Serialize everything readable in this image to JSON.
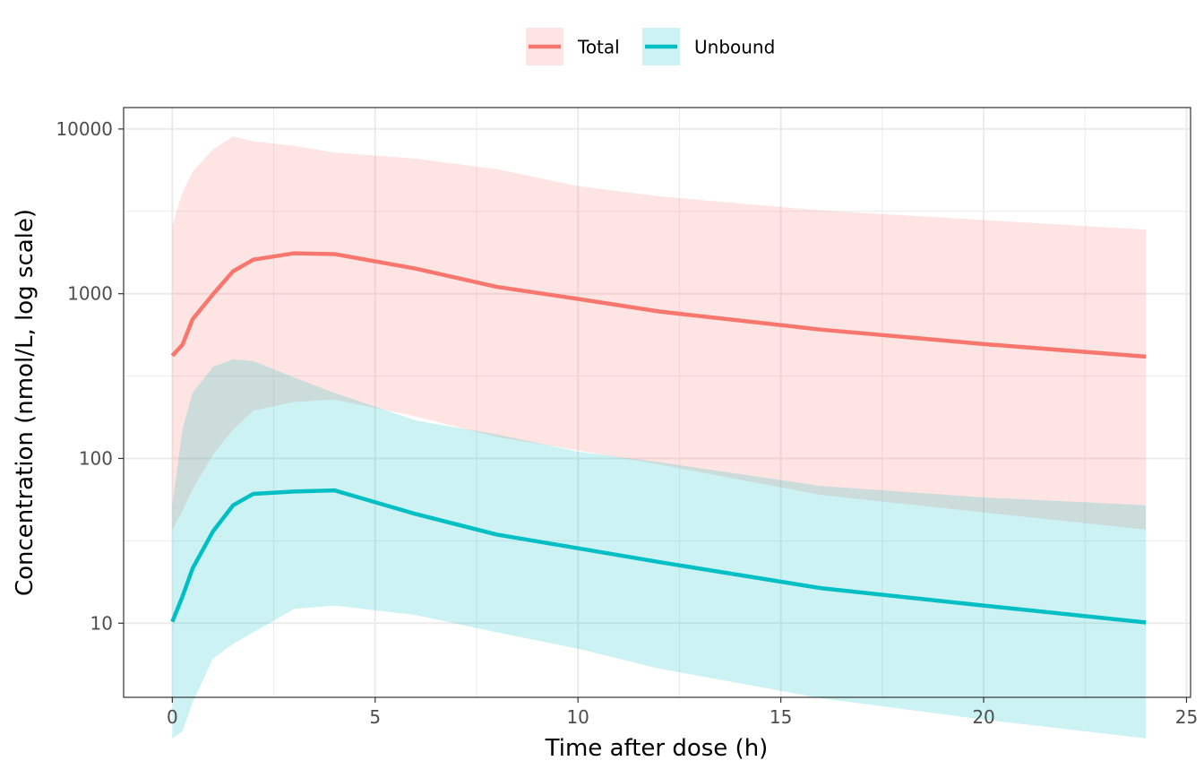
{
  "chart_data": {
    "type": "area",
    "title": "",
    "xlabel": "Time after dose (h)",
    "ylabel": "Concentration (nmol/L, log scale)",
    "xlim": [
      -1.2,
      25.1
    ],
    "ylim_log10": [
      0.55,
      4.13
    ],
    "yscale": "log10",
    "x_ticks": [
      0,
      5,
      10,
      15,
      20,
      25
    ],
    "x_tick_labels": [
      "0",
      "5",
      "10",
      "15",
      "20",
      "25"
    ],
    "y_ticks": [
      10,
      100,
      1000,
      10000
    ],
    "y_tick_labels": [
      "10",
      "100",
      "1000",
      "10000"
    ],
    "grid": true,
    "legend_position": "top",
    "series": [
      {
        "name": "Total",
        "color": "#F8766D",
        "ribbon_color": "#F8766D",
        "x": [
          0,
          0.25,
          0.5,
          1,
          1.5,
          2,
          3,
          4,
          6,
          8,
          10,
          12,
          16,
          20,
          24
        ],
        "median": [
          420,
          490,
          700,
          990,
          1370,
          1610,
          1760,
          1740,
          1420,
          1100,
          930,
          780,
          605,
          495,
          415
        ],
        "lower": [
          37,
          48,
          65,
          105,
          150,
          195,
          220,
          228,
          180,
          135,
          112,
          92,
          60,
          47,
          37
        ],
        "upper": [
          2600,
          4100,
          5500,
          7500,
          9000,
          8400,
          7900,
          7200,
          6600,
          5700,
          4500,
          3900,
          3200,
          2800,
          2450
        ]
      },
      {
        "name": "Unbound",
        "color": "#00BFC4",
        "ribbon_color": "#00BFC4",
        "x": [
          0,
          0.25,
          0.5,
          1,
          1.5,
          2,
          3,
          4,
          6,
          8,
          10,
          12,
          16,
          20,
          24
        ],
        "median": [
          10.2,
          14.5,
          21.5,
          36,
          52,
          61,
          63,
          64,
          46,
          34.5,
          28.5,
          23.5,
          16.3,
          12.8,
          10.1
        ],
        "lower": [
          2.0,
          2.2,
          3.3,
          6.1,
          7.5,
          8.8,
          12.2,
          12.8,
          11.2,
          8.8,
          7.0,
          5.3,
          3.5,
          2.6,
          2.0
        ],
        "upper": [
          52,
          150,
          250,
          360,
          400,
          390,
          310,
          250,
          170,
          140,
          110,
          95,
          68,
          58,
          52
        ]
      }
    ]
  }
}
